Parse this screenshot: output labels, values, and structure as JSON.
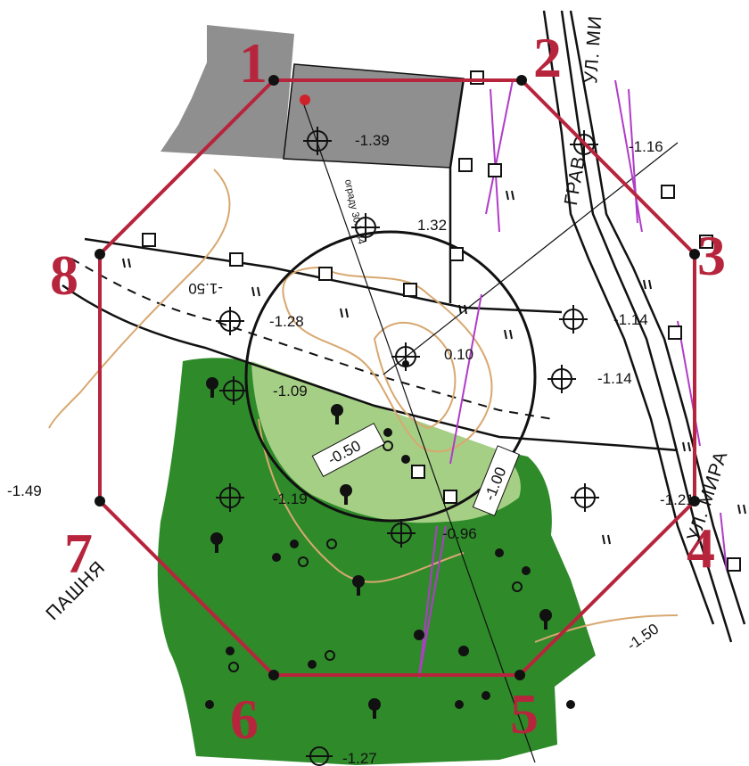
{
  "map": {
    "colors": {
      "boundary": "#b7253d",
      "forest": "#2f8a2a",
      "forest_light": "#a6cf86",
      "building": "#8f8f8f",
      "contour": "#d8a870",
      "arrows": "#b03cc8"
    },
    "vertex_labels": [
      "1",
      "2",
      "3",
      "4",
      "5",
      "6",
      "7",
      "8"
    ],
    "street_labels": {
      "top": "ГРАВ",
      "top_2": "УЛ. МИ",
      "bottom": "УЛ. МИРА",
      "left": "ПАШНЯ"
    },
    "elevations": {
      "e1": "-1.39",
      "e2": "-1.16",
      "e3": "1.32",
      "e4": "-1.28",
      "e5": "-1.14",
      "e6": "-1.14",
      "e7": "0.10",
      "e8": "-1.09",
      "e9": "-1.19",
      "e10": "-1.21",
      "e11": "-0.96",
      "e12": "-1.49",
      "e13": "-1.50",
      "e14": "-1.50",
      "e15": "-1.27"
    },
    "boxed_labels": {
      "b1": "-0.50",
      "b2": "-1.00"
    },
    "diagonal_note": "ограду 30.1.34"
  }
}
